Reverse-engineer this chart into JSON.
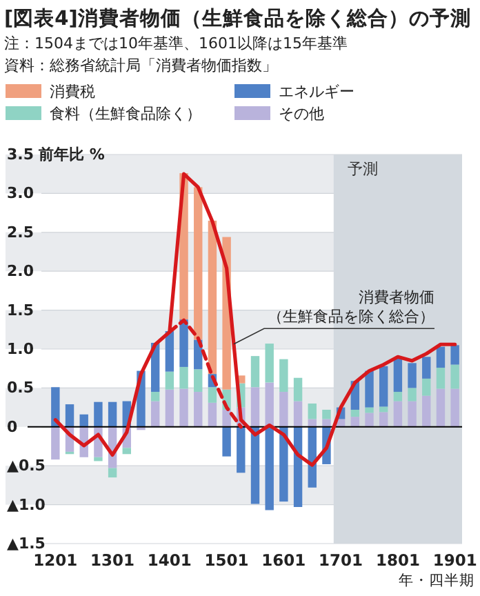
{
  "chart_data": {
    "type": "bar",
    "stacked": true,
    "title": "[図表4]消費者物価（生鮮食品を除く総合）の予測",
    "subtitle": "注：1504までは10年基準、1601以降は15年基準",
    "annotations": [
      "資料：総務省統計局「消費者物価指数」"
    ],
    "ylabel": "前年比 %",
    "xlabel": "年・四半期",
    "categories": [
      "1201",
      null,
      null,
      null,
      "1301",
      null,
      null,
      null,
      "1401",
      null,
      null,
      null,
      "1501",
      null,
      null,
      null,
      "1601",
      null,
      null,
      null,
      "1701",
      null,
      null,
      null,
      "1801",
      null,
      null,
      null,
      "1901"
    ],
    "series": [
      {
        "name": "その他",
        "color": "#b9b3dc",
        "values": [
          -0.42,
          -0.32,
          -0.39,
          -0.39,
          -0.53,
          -0.27,
          -0.04,
          0.33,
          0.48,
          0.49,
          0.45,
          0.31,
          0.22,
          0.25,
          0.51,
          0.57,
          0.45,
          0.33,
          0.1,
          0.1,
          0.1,
          0.13,
          0.18,
          0.19,
          0.33,
          0.33,
          0.4,
          0.49,
          0.49
        ]
      },
      {
        "name": "食料（生鮮食品除く）",
        "color": "#8fd3c4",
        "values": [
          null,
          -0.03,
          null,
          -0.05,
          -0.12,
          -0.08,
          null,
          0.12,
          0.23,
          0.28,
          0.29,
          0.2,
          0.26,
          0.31,
          0.4,
          0.5,
          0.42,
          0.3,
          0.2,
          0.12,
          null,
          0.09,
          0.07,
          0.07,
          0.12,
          0.17,
          0.22,
          0.27,
          0.31
        ]
      },
      {
        "name": "エネルギー",
        "color": "#4f81c7",
        "values": [
          0.51,
          0.29,
          0.16,
          0.32,
          0.32,
          0.33,
          0.72,
          0.63,
          0.52,
          0.61,
          0.38,
          0.17,
          -0.38,
          -0.59,
          -0.99,
          -1.07,
          -0.96,
          -1.03,
          -0.78,
          -0.48,
          0.15,
          0.37,
          0.47,
          0.52,
          0.43,
          0.32,
          0.28,
          0.27,
          0.25
        ]
      },
      {
        "name": "消費税",
        "color": "#f0a07f",
        "values": [
          null,
          null,
          null,
          null,
          null,
          null,
          null,
          null,
          null,
          1.88,
          1.96,
          1.97,
          1.96,
          0.1,
          null,
          null,
          null,
          null,
          null,
          null,
          null,
          null,
          null,
          null,
          null,
          null,
          null,
          null,
          null
        ]
      },
      {
        "type": "line",
        "name": "消費者物価（生鮮食品を除く総合）",
        "color": "#d7191c",
        "line_style": "solid",
        "values": [
          0.09,
          -0.1,
          -0.24,
          -0.1,
          -0.36,
          -0.07,
          0.68,
          1.06,
          1.22,
          3.25,
          3.08,
          2.64,
          2.04,
          0.09,
          -0.1,
          0.02,
          -0.1,
          -0.36,
          -0.49,
          -0.27,
          0.25,
          0.57,
          0.72,
          0.8,
          0.9,
          0.85,
          0.94,
          1.06,
          1.06
        ]
      },
      {
        "type": "line",
        "color": "#d7191c",
        "line_style": "dashed",
        "values": [
          null,
          null,
          null,
          null,
          null,
          null,
          null,
          null,
          1.22,
          1.37,
          1.14,
          0.65,
          0.25,
          0.0,
          null,
          null,
          null,
          null,
          null,
          null,
          null,
          null,
          null,
          null,
          null,
          null,
          null,
          null,
          null
        ]
      }
    ],
    "ylim": [
      -1.5,
      3.5
    ],
    "yticks": [
      {
        "value": -1.5,
        "label": "▲1.5"
      },
      {
        "value": -1.0,
        "label": "▲1.0"
      },
      {
        "value": -0.5,
        "label": "▲0.5"
      },
      0,
      {
        "value": 0.5,
        "label": "0.5"
      },
      {
        "value": 1.0,
        "label": "1.0"
      },
      {
        "value": 1.5,
        "label": "1.5"
      },
      {
        "value": 2.0,
        "label": "2.0"
      },
      {
        "value": 2.5,
        "label": "2.5"
      },
      {
        "value": 3.0,
        "label": "3.0"
      },
      3.5
    ],
    "bands": [
      {
        "axis": "x",
        "from": "1701",
        "to": "1901",
        "label": "予測",
        "color": "#d3d9df"
      }
    ],
    "ref_lines": [
      {
        "axis": "y",
        "value": 0,
        "color": "#000000"
      }
    ],
    "grid": "y",
    "legend": "top"
  }
}
